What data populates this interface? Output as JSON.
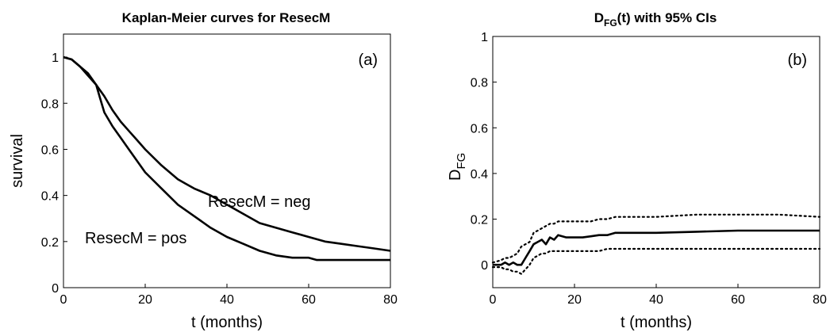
{
  "chart_data": [
    {
      "type": "line",
      "title": "Kaplan-Meier curves for ResecM",
      "xlabel": "t (months)",
      "ylabel": "survival",
      "xlim": [
        0,
        80
      ],
      "ylim": [
        0,
        1.1
      ],
      "xticks": [
        "0",
        "20",
        "40",
        "60",
        "80"
      ],
      "yticks": [
        "0",
        "0.2",
        "0.4",
        "0.6",
        "0.8",
        "1"
      ],
      "panel_label": "(a)",
      "grid": false,
      "series": [
        {
          "name": "ResecM = neg",
          "x": [
            0,
            2,
            4,
            6,
            8,
            10,
            12,
            14,
            16,
            18,
            20,
            24,
            28,
            30,
            32,
            36,
            40,
            44,
            48,
            52,
            56,
            60,
            64,
            68,
            72,
            76,
            80
          ],
          "y": [
            1.0,
            0.99,
            0.96,
            0.92,
            0.88,
            0.83,
            0.77,
            0.72,
            0.68,
            0.64,
            0.6,
            0.53,
            0.47,
            0.45,
            0.43,
            0.4,
            0.36,
            0.32,
            0.28,
            0.26,
            0.24,
            0.22,
            0.2,
            0.19,
            0.18,
            0.17,
            0.16
          ]
        },
        {
          "name": "ResecM = pos",
          "x": [
            0,
            2,
            4,
            6,
            8,
            9,
            10,
            12,
            14,
            16,
            18,
            20,
            24,
            28,
            32,
            36,
            40,
            44,
            48,
            52,
            56,
            60,
            62,
            64,
            70,
            80
          ],
          "y": [
            1.0,
            0.99,
            0.96,
            0.93,
            0.88,
            0.82,
            0.76,
            0.7,
            0.65,
            0.6,
            0.55,
            0.5,
            0.43,
            0.36,
            0.31,
            0.26,
            0.22,
            0.19,
            0.16,
            0.14,
            0.13,
            0.13,
            0.12,
            0.12,
            0.12,
            0.12
          ]
        }
      ]
    },
    {
      "type": "line",
      "title_main": "D",
      "title_sub": "FG",
      "title_rest": "(t) with 95% CIs",
      "xlabel": "t (months)",
      "ylabel_main": "D",
      "ylabel_sub": "FG",
      "xlim": [
        0,
        80
      ],
      "ylim": [
        -0.1,
        1.0
      ],
      "xticks": [
        "0",
        "20",
        "40",
        "60",
        "80"
      ],
      "yticks": [
        "0",
        "0.2",
        "0.4",
        "0.6",
        "0.8",
        "1"
      ],
      "panel_label": "(b)",
      "grid": false,
      "series": [
        {
          "x": [
            0,
            2,
            3,
            4,
            5,
            6,
            7,
            8,
            9,
            10,
            11,
            12,
            13,
            14,
            15,
            16,
            18,
            20,
            22,
            24,
            26,
            28,
            30,
            35,
            40,
            50,
            60,
            70,
            80
          ],
          "y": [
            0.0,
            0.0,
            0.01,
            0.0,
            0.01,
            0.0,
            0.0,
            0.03,
            0.06,
            0.09,
            0.1,
            0.11,
            0.09,
            0.12,
            0.11,
            0.13,
            0.12,
            0.12,
            0.12,
            0.125,
            0.13,
            0.13,
            0.14,
            0.14,
            0.14,
            0.145,
            0.15,
            0.15,
            0.15
          ],
          "style": "solid"
        },
        {
          "x": [
            0,
            2,
            3,
            4,
            5,
            6,
            7,
            8,
            9,
            10,
            11,
            12,
            13,
            14,
            15,
            16,
            18,
            20,
            22,
            24,
            26,
            28,
            30,
            35,
            40,
            50,
            60,
            70,
            80
          ],
          "y": [
            0.01,
            0.02,
            0.03,
            0.03,
            0.04,
            0.05,
            0.08,
            0.09,
            0.1,
            0.14,
            0.15,
            0.16,
            0.17,
            0.18,
            0.18,
            0.19,
            0.19,
            0.19,
            0.19,
            0.19,
            0.2,
            0.2,
            0.21,
            0.21,
            0.21,
            0.22,
            0.22,
            0.22,
            0.21
          ],
          "style": "dotted"
        },
        {
          "x": [
            0,
            2,
            3,
            4,
            5,
            6,
            7,
            8,
            9,
            10,
            11,
            12,
            13,
            14,
            15,
            16,
            18,
            20,
            22,
            24,
            26,
            28,
            30,
            35,
            40,
            50,
            60,
            70,
            80
          ],
          "y": [
            -0.01,
            -0.01,
            -0.02,
            -0.02,
            -0.03,
            -0.03,
            -0.04,
            -0.02,
            0.0,
            0.03,
            0.04,
            0.05,
            0.05,
            0.06,
            0.06,
            0.06,
            0.06,
            0.06,
            0.06,
            0.06,
            0.06,
            0.07,
            0.07,
            0.07,
            0.07,
            0.07,
            0.07,
            0.07,
            0.07
          ],
          "style": "dotted"
        }
      ]
    }
  ]
}
